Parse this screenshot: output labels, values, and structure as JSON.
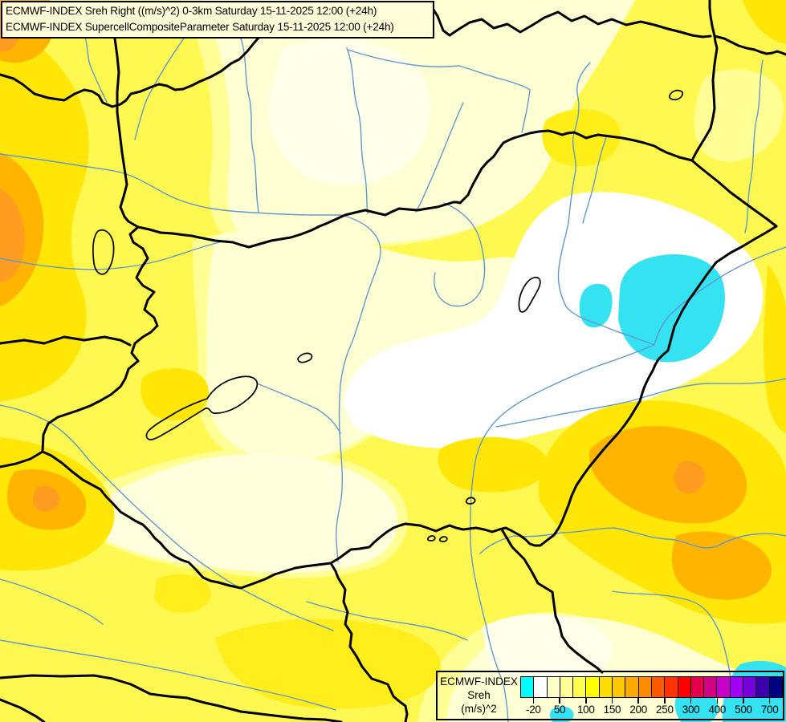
{
  "header": {
    "line1": "ECMWF-INDEX Sreh Right ((m/s)^2) 0-3km Saturday 15-11-2025 12:00 (+24h)",
    "line2": "ECMWF-INDEX SupercellCompositeParameter Saturday 15-11-2025 12:00 (+24h)"
  },
  "legend": {
    "title_line1": "ECMWF-INDEX",
    "title_line2": "Sreh",
    "title_line3": "(m/s)^2",
    "tick_labels": [
      "-20",
      "50",
      "100",
      "150",
      "200",
      "250",
      "300",
      "400",
      "500",
      "700"
    ],
    "colors": [
      "#00FFFF",
      "#FFFFFF",
      "#FFFFC8",
      "#FFFF96",
      "#FFFF50",
      "#FFFF00",
      "#FFDC00",
      "#FFC800",
      "#FFAA00",
      "#FF8C00",
      "#FF5A00",
      "#FF3200",
      "#FF0000",
      "#E6004B",
      "#D20082",
      "#C800C8",
      "#A000F5",
      "#7800DC",
      "#3C00AA",
      "#000082"
    ]
  },
  "map_palette": {
    "base_yellow": "#FFF851",
    "pale_yellow": "#FFFF96",
    "cream": "#FFFFD4",
    "pale_band": "#FFFFDE",
    "near_white": "#FFFFEA",
    "white_area": "#FFFFFF",
    "cyan_negative_area": "#35E2F2",
    "gold": "#FFE607",
    "orange": "#FFB400",
    "deep_orange": "#FF9D20",
    "river_blue": "#6398CE",
    "border_black": "#000000"
  }
}
